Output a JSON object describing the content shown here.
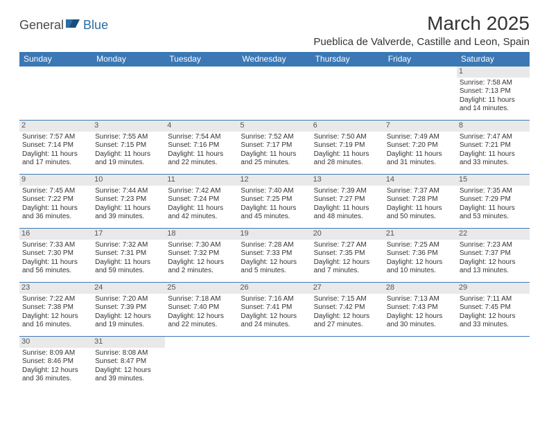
{
  "logo": {
    "part1": "General",
    "part2": "Blue"
  },
  "title": "March 2025",
  "location": "Pueblica de Valverde, Castille and Leon, Spain",
  "colors": {
    "header_bg": "#3b78b5",
    "header_text": "#ffffff",
    "border": "#3b78b5",
    "daynum_bg": "#e9e9e9",
    "logo_accent": "#2b6ca3",
    "text": "#333333"
  },
  "day_headers": [
    "Sunday",
    "Monday",
    "Tuesday",
    "Wednesday",
    "Thursday",
    "Friday",
    "Saturday"
  ],
  "weeks": [
    [
      {
        "empty": true
      },
      {
        "empty": true
      },
      {
        "empty": true
      },
      {
        "empty": true
      },
      {
        "empty": true
      },
      {
        "empty": true
      },
      {
        "day": "1",
        "sunrise": "Sunrise: 7:58 AM",
        "sunset": "Sunset: 7:13 PM",
        "daylight1": "Daylight: 11 hours",
        "daylight2": "and 14 minutes."
      }
    ],
    [
      {
        "day": "2",
        "sunrise": "Sunrise: 7:57 AM",
        "sunset": "Sunset: 7:14 PM",
        "daylight1": "Daylight: 11 hours",
        "daylight2": "and 17 minutes."
      },
      {
        "day": "3",
        "sunrise": "Sunrise: 7:55 AM",
        "sunset": "Sunset: 7:15 PM",
        "daylight1": "Daylight: 11 hours",
        "daylight2": "and 19 minutes."
      },
      {
        "day": "4",
        "sunrise": "Sunrise: 7:54 AM",
        "sunset": "Sunset: 7:16 PM",
        "daylight1": "Daylight: 11 hours",
        "daylight2": "and 22 minutes."
      },
      {
        "day": "5",
        "sunrise": "Sunrise: 7:52 AM",
        "sunset": "Sunset: 7:17 PM",
        "daylight1": "Daylight: 11 hours",
        "daylight2": "and 25 minutes."
      },
      {
        "day": "6",
        "sunrise": "Sunrise: 7:50 AM",
        "sunset": "Sunset: 7:19 PM",
        "daylight1": "Daylight: 11 hours",
        "daylight2": "and 28 minutes."
      },
      {
        "day": "7",
        "sunrise": "Sunrise: 7:49 AM",
        "sunset": "Sunset: 7:20 PM",
        "daylight1": "Daylight: 11 hours",
        "daylight2": "and 31 minutes."
      },
      {
        "day": "8",
        "sunrise": "Sunrise: 7:47 AM",
        "sunset": "Sunset: 7:21 PM",
        "daylight1": "Daylight: 11 hours",
        "daylight2": "and 33 minutes."
      }
    ],
    [
      {
        "day": "9",
        "sunrise": "Sunrise: 7:45 AM",
        "sunset": "Sunset: 7:22 PM",
        "daylight1": "Daylight: 11 hours",
        "daylight2": "and 36 minutes."
      },
      {
        "day": "10",
        "sunrise": "Sunrise: 7:44 AM",
        "sunset": "Sunset: 7:23 PM",
        "daylight1": "Daylight: 11 hours",
        "daylight2": "and 39 minutes."
      },
      {
        "day": "11",
        "sunrise": "Sunrise: 7:42 AM",
        "sunset": "Sunset: 7:24 PM",
        "daylight1": "Daylight: 11 hours",
        "daylight2": "and 42 minutes."
      },
      {
        "day": "12",
        "sunrise": "Sunrise: 7:40 AM",
        "sunset": "Sunset: 7:25 PM",
        "daylight1": "Daylight: 11 hours",
        "daylight2": "and 45 minutes."
      },
      {
        "day": "13",
        "sunrise": "Sunrise: 7:39 AM",
        "sunset": "Sunset: 7:27 PM",
        "daylight1": "Daylight: 11 hours",
        "daylight2": "and 48 minutes."
      },
      {
        "day": "14",
        "sunrise": "Sunrise: 7:37 AM",
        "sunset": "Sunset: 7:28 PM",
        "daylight1": "Daylight: 11 hours",
        "daylight2": "and 50 minutes."
      },
      {
        "day": "15",
        "sunrise": "Sunrise: 7:35 AM",
        "sunset": "Sunset: 7:29 PM",
        "daylight1": "Daylight: 11 hours",
        "daylight2": "and 53 minutes."
      }
    ],
    [
      {
        "day": "16",
        "sunrise": "Sunrise: 7:33 AM",
        "sunset": "Sunset: 7:30 PM",
        "daylight1": "Daylight: 11 hours",
        "daylight2": "and 56 minutes."
      },
      {
        "day": "17",
        "sunrise": "Sunrise: 7:32 AM",
        "sunset": "Sunset: 7:31 PM",
        "daylight1": "Daylight: 11 hours",
        "daylight2": "and 59 minutes."
      },
      {
        "day": "18",
        "sunrise": "Sunrise: 7:30 AM",
        "sunset": "Sunset: 7:32 PM",
        "daylight1": "Daylight: 12 hours",
        "daylight2": "and 2 minutes."
      },
      {
        "day": "19",
        "sunrise": "Sunrise: 7:28 AM",
        "sunset": "Sunset: 7:33 PM",
        "daylight1": "Daylight: 12 hours",
        "daylight2": "and 5 minutes."
      },
      {
        "day": "20",
        "sunrise": "Sunrise: 7:27 AM",
        "sunset": "Sunset: 7:35 PM",
        "daylight1": "Daylight: 12 hours",
        "daylight2": "and 7 minutes."
      },
      {
        "day": "21",
        "sunrise": "Sunrise: 7:25 AM",
        "sunset": "Sunset: 7:36 PM",
        "daylight1": "Daylight: 12 hours",
        "daylight2": "and 10 minutes."
      },
      {
        "day": "22",
        "sunrise": "Sunrise: 7:23 AM",
        "sunset": "Sunset: 7:37 PM",
        "daylight1": "Daylight: 12 hours",
        "daylight2": "and 13 minutes."
      }
    ],
    [
      {
        "day": "23",
        "sunrise": "Sunrise: 7:22 AM",
        "sunset": "Sunset: 7:38 PM",
        "daylight1": "Daylight: 12 hours",
        "daylight2": "and 16 minutes."
      },
      {
        "day": "24",
        "sunrise": "Sunrise: 7:20 AM",
        "sunset": "Sunset: 7:39 PM",
        "daylight1": "Daylight: 12 hours",
        "daylight2": "and 19 minutes."
      },
      {
        "day": "25",
        "sunrise": "Sunrise: 7:18 AM",
        "sunset": "Sunset: 7:40 PM",
        "daylight1": "Daylight: 12 hours",
        "daylight2": "and 22 minutes."
      },
      {
        "day": "26",
        "sunrise": "Sunrise: 7:16 AM",
        "sunset": "Sunset: 7:41 PM",
        "daylight1": "Daylight: 12 hours",
        "daylight2": "and 24 minutes."
      },
      {
        "day": "27",
        "sunrise": "Sunrise: 7:15 AM",
        "sunset": "Sunset: 7:42 PM",
        "daylight1": "Daylight: 12 hours",
        "daylight2": "and 27 minutes."
      },
      {
        "day": "28",
        "sunrise": "Sunrise: 7:13 AM",
        "sunset": "Sunset: 7:43 PM",
        "daylight1": "Daylight: 12 hours",
        "daylight2": "and 30 minutes."
      },
      {
        "day": "29",
        "sunrise": "Sunrise: 7:11 AM",
        "sunset": "Sunset: 7:45 PM",
        "daylight1": "Daylight: 12 hours",
        "daylight2": "and 33 minutes."
      }
    ],
    [
      {
        "day": "30",
        "sunrise": "Sunrise: 8:09 AM",
        "sunset": "Sunset: 8:46 PM",
        "daylight1": "Daylight: 12 hours",
        "daylight2": "and 36 minutes."
      },
      {
        "day": "31",
        "sunrise": "Sunrise: 8:08 AM",
        "sunset": "Sunset: 8:47 PM",
        "daylight1": "Daylight: 12 hours",
        "daylight2": "and 39 minutes."
      },
      {
        "empty": true
      },
      {
        "empty": true
      },
      {
        "empty": true
      },
      {
        "empty": true
      },
      {
        "empty": true
      }
    ]
  ]
}
